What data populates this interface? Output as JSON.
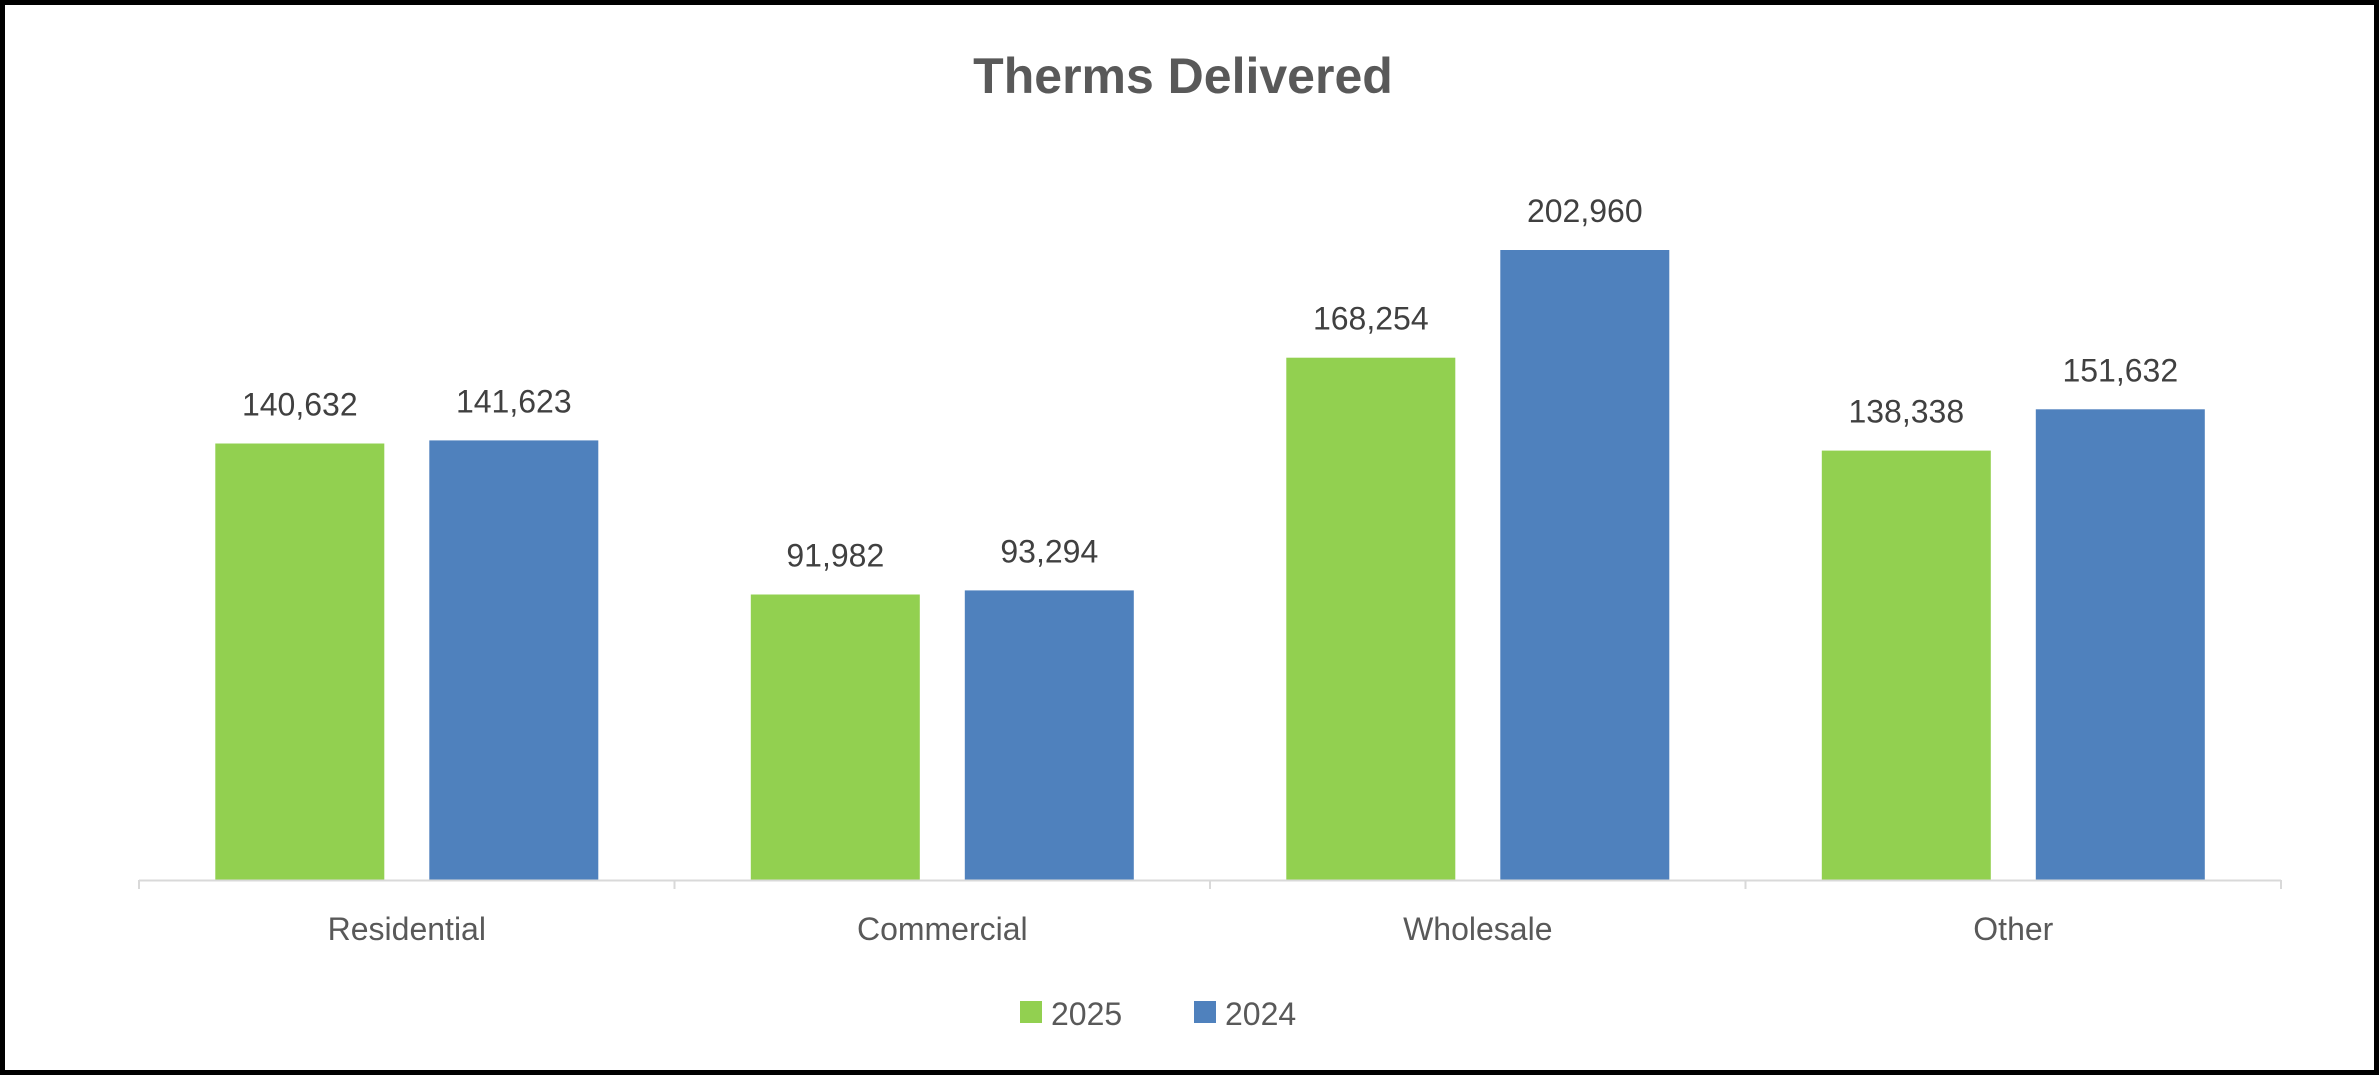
{
  "chart_data": {
    "type": "bar",
    "title": "Therms Delivered",
    "xlabel": "",
    "ylabel": "",
    "categories": [
      "Residential",
      "Commercial",
      "Wholesale",
      "Other"
    ],
    "series": [
      {
        "name": "2025",
        "color": "#92D050",
        "values": [
          140632,
          91982,
          168254,
          138338
        ],
        "labels": [
          "140,632",
          "91,982",
          "168,254",
          "138,338"
        ]
      },
      {
        "name": "2024",
        "color": "#4F81BD",
        "values": [
          141623,
          93294,
          202960,
          151632
        ],
        "labels": [
          "141,623",
          "93,294",
          "202,960",
          "151,632"
        ]
      }
    ],
    "ylim": [
      0,
      212000
    ],
    "grid": false,
    "y_axis_visible": false,
    "data_labels": true,
    "legend_position": "bottom"
  }
}
